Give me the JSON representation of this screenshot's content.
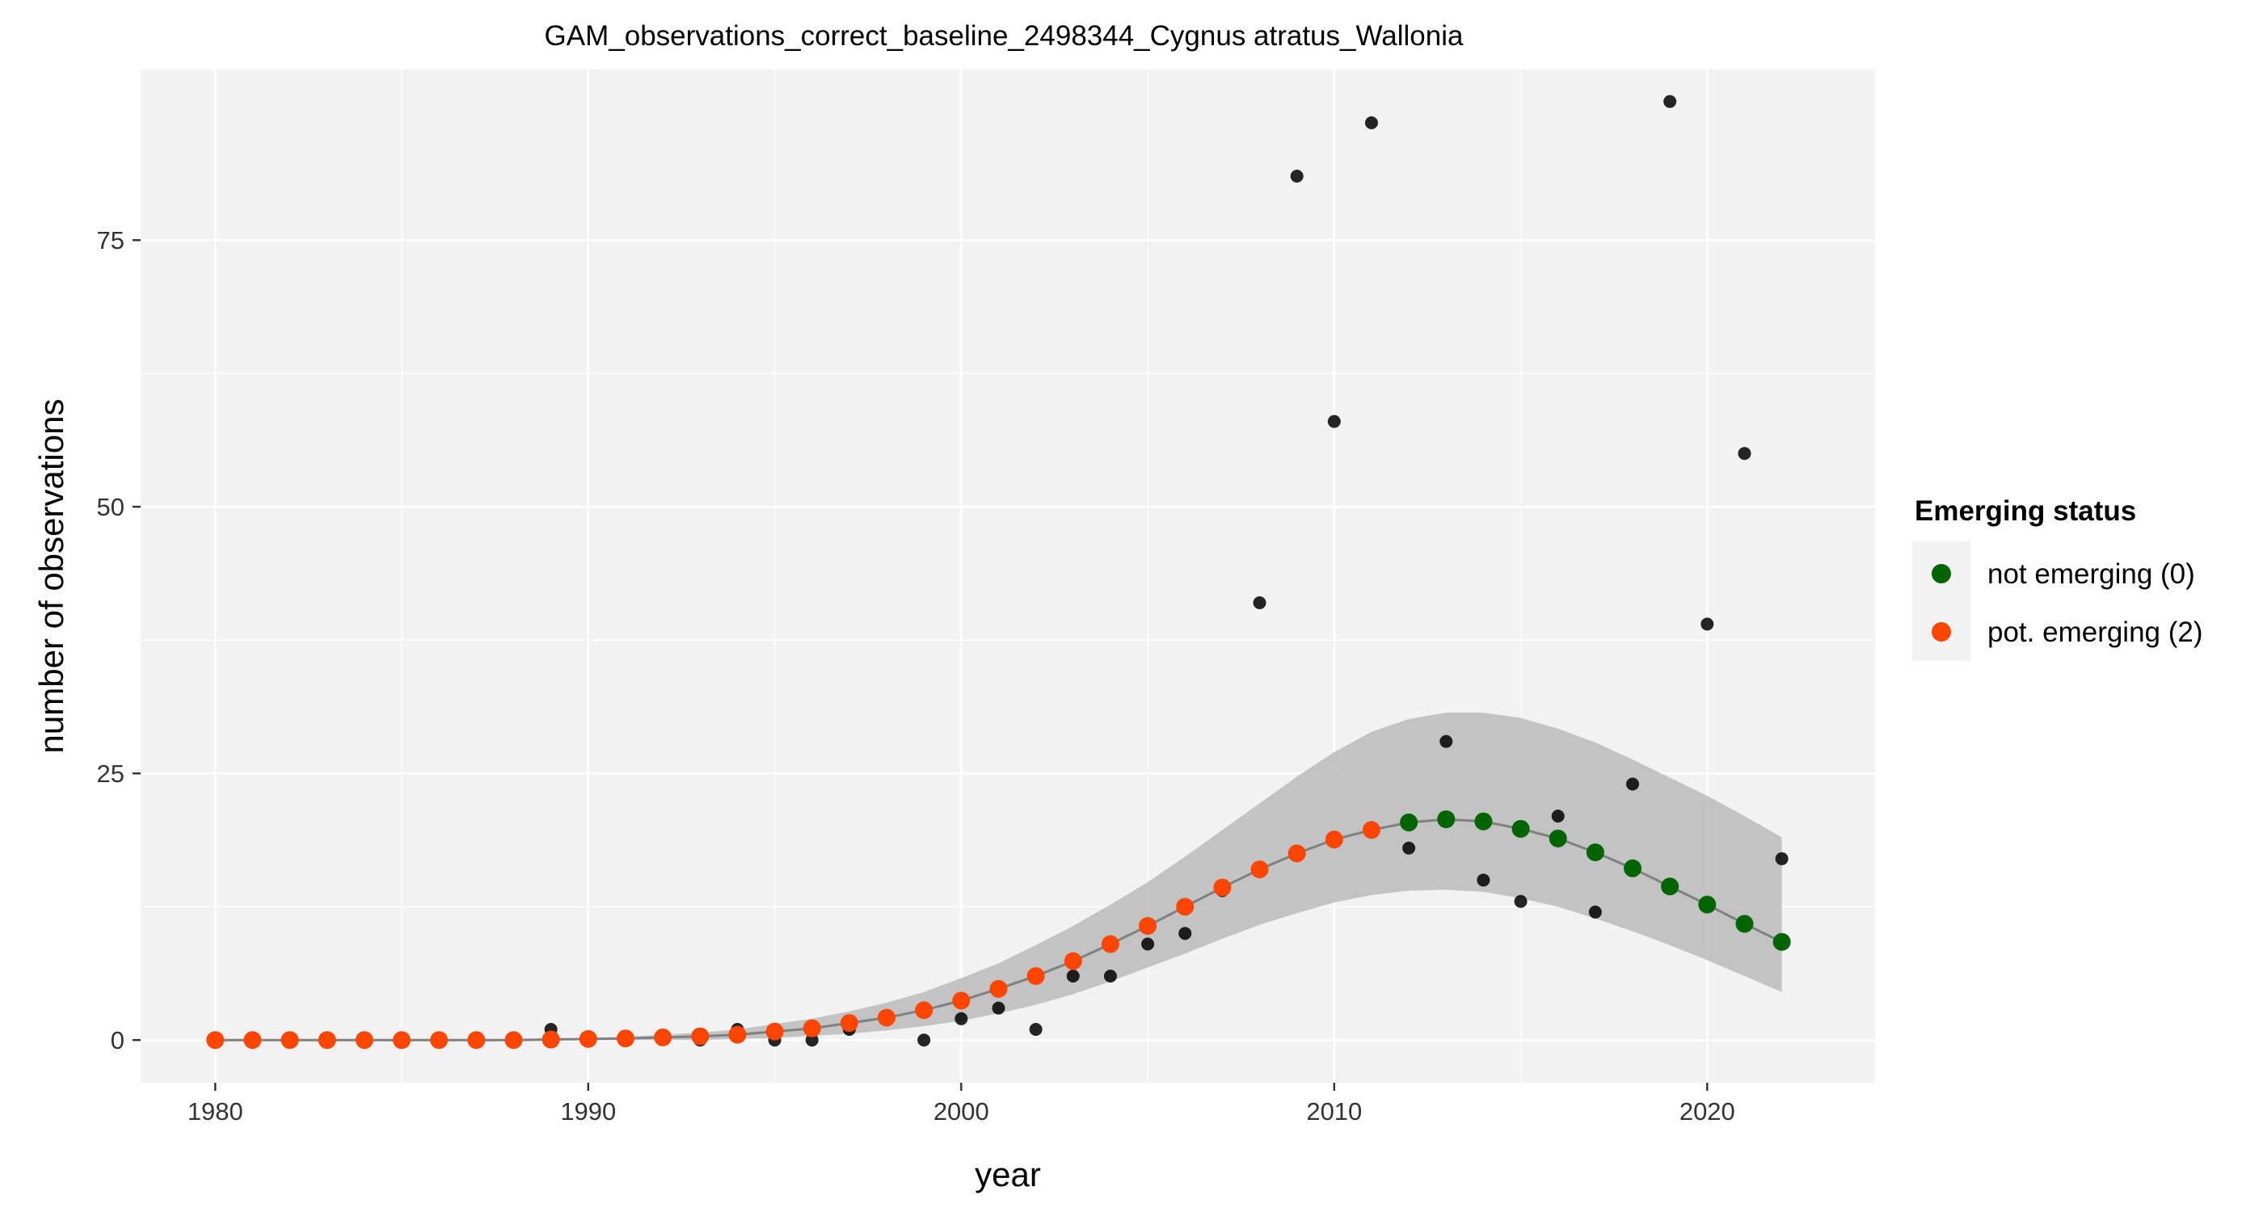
{
  "chart_data": {
    "type": "scatter",
    "title": "GAM_observations_correct_baseline_2498344_Cygnus atratus_Wallonia",
    "xlabel": "year",
    "ylabel": "number of observations",
    "xlim": [
      1978,
      2024.5
    ],
    "ylim": [
      -4,
      91
    ],
    "x_ticks": [
      1980,
      1990,
      2000,
      2010,
      2020
    ],
    "y_ticks": [
      0,
      25,
      50,
      75
    ],
    "grid": true,
    "legend": {
      "title": "Emerging status",
      "position": "right",
      "entries": [
        {
          "label": "not emerging (0)",
          "color": "#006400"
        },
        {
          "label": "pot. emerging (2)",
          "color": "#FF4500"
        }
      ]
    },
    "colors": {
      "panel_bg": "#F2F2F2",
      "grid": "#FFFFFF",
      "band": "#BEBEBE",
      "fit_line": "#808080",
      "observed": "#000000",
      "not_emerging": "#006400",
      "pot_emerging": "#FF4500"
    },
    "observed": {
      "x": [
        1989,
        1993,
        1994,
        1995,
        1996,
        1997,
        1999,
        2000,
        2001,
        2002,
        2003,
        2004,
        2005,
        2006,
        2007,
        2008,
        2009,
        2010,
        2011,
        2012,
        2013,
        2014,
        2015,
        2016,
        2017,
        2018,
        2019,
        2020,
        2021,
        2022
      ],
      "y": [
        1,
        0,
        1,
        0,
        0,
        1,
        0,
        2,
        3,
        1,
        6,
        6,
        9,
        10,
        14,
        41,
        81,
        58,
        86,
        18,
        28,
        15,
        13,
        21,
        12,
        24,
        88,
        39,
        55,
        17
      ]
    },
    "fitted": {
      "x": [
        1980,
        1981,
        1982,
        1983,
        1984,
        1985,
        1986,
        1987,
        1988,
        1989,
        1990,
        1991,
        1992,
        1993,
        1994,
        1995,
        1996,
        1997,
        1998,
        1999,
        2000,
        2001,
        2002,
        2003,
        2004,
        2005,
        2006,
        2007,
        2008,
        2009,
        2010,
        2011,
        2012,
        2013,
        2014,
        2015,
        2016,
        2017,
        2018,
        2019,
        2020,
        2021,
        2022
      ],
      "y": [
        0,
        0,
        0,
        0,
        0,
        0,
        0,
        0,
        0,
        0.05,
        0.1,
        0.15,
        0.25,
        0.35,
        0.5,
        0.8,
        1.1,
        1.6,
        2.1,
        2.8,
        3.7,
        4.8,
        6.0,
        7.4,
        9.0,
        10.7,
        12.5,
        14.3,
        16.0,
        17.5,
        18.8,
        19.7,
        20.4,
        20.7,
        20.5,
        19.8,
        18.9,
        17.6,
        16.1,
        14.4,
        12.7,
        10.9,
        9.2
      ],
      "lower": [
        0,
        0,
        0,
        0,
        0,
        0,
        0,
        0,
        0,
        0,
        0,
        0,
        0,
        0,
        0.1,
        0.2,
        0.4,
        0.6,
        0.9,
        1.3,
        1.8,
        2.5,
        3.3,
        4.3,
        5.5,
        6.8,
        8.1,
        9.5,
        10.8,
        11.9,
        12.9,
        13.6,
        14.0,
        14.1,
        13.9,
        13.3,
        12.5,
        11.4,
        10.2,
        8.9,
        7.5,
        6.0,
        4.5
      ],
      "upper": [
        0,
        0,
        0,
        0,
        0,
        0,
        0,
        0,
        0,
        0.1,
        0.2,
        0.3,
        0.5,
        0.7,
        1.0,
        1.5,
        2.0,
        2.7,
        3.5,
        4.5,
        5.8,
        7.2,
        8.9,
        10.7,
        12.7,
        14.8,
        17.2,
        19.7,
        22.2,
        24.7,
        27.0,
        28.9,
        30.1,
        30.7,
        30.7,
        30.2,
        29.2,
        27.9,
        26.3,
        24.6,
        22.9,
        21.0,
        19.0
      ],
      "status": [
        "pot. emerging (2)",
        "pot. emerging (2)",
        "pot. emerging (2)",
        "pot. emerging (2)",
        "pot. emerging (2)",
        "pot. emerging (2)",
        "pot. emerging (2)",
        "pot. emerging (2)",
        "pot. emerging (2)",
        "pot. emerging (2)",
        "pot. emerging (2)",
        "pot. emerging (2)",
        "pot. emerging (2)",
        "pot. emerging (2)",
        "pot. emerging (2)",
        "pot. emerging (2)",
        "pot. emerging (2)",
        "pot. emerging (2)",
        "pot. emerging (2)",
        "pot. emerging (2)",
        "pot. emerging (2)",
        "pot. emerging (2)",
        "pot. emerging (2)",
        "pot. emerging (2)",
        "pot. emerging (2)",
        "pot. emerging (2)",
        "pot. emerging (2)",
        "pot. emerging (2)",
        "pot. emerging (2)",
        "pot. emerging (2)",
        "pot. emerging (2)",
        "pot. emerging (2)",
        "not emerging (0)",
        "not emerging (0)",
        "not emerging (0)",
        "not emerging (0)",
        "not emerging (0)",
        "not emerging (0)",
        "not emerging (0)",
        "not emerging (0)",
        "not emerging (0)",
        "not emerging (0)",
        "not emerging (0)"
      ]
    }
  }
}
